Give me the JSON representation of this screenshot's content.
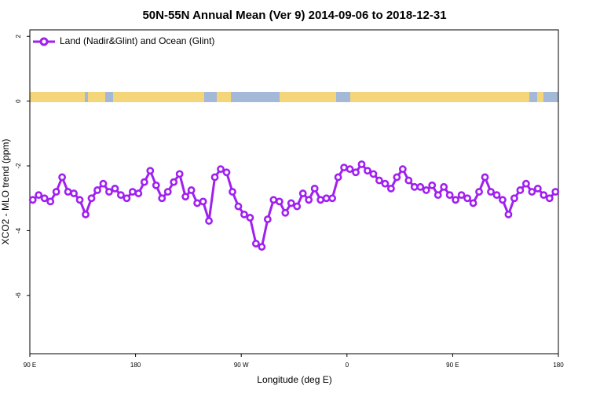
{
  "chart_data": {
    "type": "line",
    "title": "50N-55N Annual Mean (Ver 9)   2014-09-06 to 2018-12-31",
    "x_label": "Longitude (deg E)",
    "y_label": "XCO2 - MLO trend (ppm)",
    "xlim": [
      90,
      540
    ],
    "ylim": [
      -7.8,
      2.2
    ],
    "xticks": [
      {
        "value": 90,
        "label": "90 E"
      },
      180,
      {
        "value": 270,
        "label": "90 W"
      },
      {
        "value": 360,
        "label": "0"
      },
      {
        "value": 450,
        "label": "90 E"
      },
      {
        "value": 540,
        "label": "180"
      }
    ],
    "yticks": [
      2,
      0,
      -2,
      -4,
      -6
    ],
    "legend": "top-left",
    "x": [
      92.5,
      97.5,
      102.5,
      107.5,
      112.5,
      117.5,
      122.5,
      127.5,
      132.5,
      137.5,
      142.5,
      147.5,
      152.5,
      157.5,
      162.5,
      167.5,
      172.5,
      177.5,
      182.5,
      187.5,
      192.5,
      197.5,
      202.5,
      207.5,
      212.5,
      217.5,
      222.5,
      227.5,
      232.5,
      237.5,
      242.5,
      247.5,
      252.5,
      257.5,
      262.5,
      267.5,
      272.5,
      277.5,
      282.5,
      287.5,
      292.5,
      297.5,
      302.5,
      307.5,
      312.5,
      317.5,
      322.5,
      327.5,
      332.5,
      337.5,
      342.5,
      347.5,
      352.5,
      357.5,
      362.5,
      367.5,
      372.5,
      377.5,
      382.5,
      387.5,
      392.5,
      397.5,
      402.5,
      407.5,
      412.5,
      417.5,
      422.5,
      427.5,
      432.5,
      437.5,
      442.5,
      447.5,
      452.5,
      457.5,
      462.5,
      467.5,
      472.5,
      477.5,
      482.5,
      487.5,
      492.5,
      497.5,
      502.5,
      507.5,
      512.5,
      517.5,
      522.5,
      527.5,
      532.5,
      537.5
    ],
    "series": [
      {
        "name": "Land (Nadir&Glint) and Ocean (Glint)",
        "color": "#a020f0",
        "values": [
          -3.05,
          -2.9,
          -3.0,
          -3.1,
          -2.8,
          -2.35,
          -2.8,
          -2.85,
          -3.05,
          -3.5,
          -3.0,
          -2.75,
          -2.55,
          -2.8,
          -2.7,
          -2.9,
          -3.0,
          -2.8,
          -2.85,
          -2.5,
          -2.15,
          -2.6,
          -3.0,
          -2.8,
          -2.5,
          -2.25,
          -2.95,
          -2.75,
          -3.15,
          -3.1,
          -3.7,
          -2.35,
          -2.1,
          -2.2,
          -2.8,
          -3.25,
          -3.5,
          -3.6,
          -4.4,
          -4.5,
          -3.65,
          -3.05,
          -3.1,
          -3.45,
          -3.15,
          -3.25,
          -2.85,
          -3.05,
          -2.7,
          -3.05,
          -3.0,
          -3.0,
          -2.35,
          -2.05,
          -2.1,
          -2.2,
          -1.95,
          -2.15,
          -2.25,
          -2.45,
          -2.55,
          -2.7,
          -2.35,
          -2.1,
          -2.45,
          -2.65,
          -2.65,
          -2.75,
          -2.6,
          -2.9,
          -2.65,
          -2.9,
          -3.05,
          -2.9,
          -3.0,
          -3.15,
          -2.8,
          -2.35,
          -2.8,
          -2.9,
          -3.05,
          -3.5,
          -3.0,
          -2.75,
          -2.55,
          -2.8,
          -2.7,
          -2.9,
          -3.0,
          -2.8
        ]
      }
    ]
  }
}
